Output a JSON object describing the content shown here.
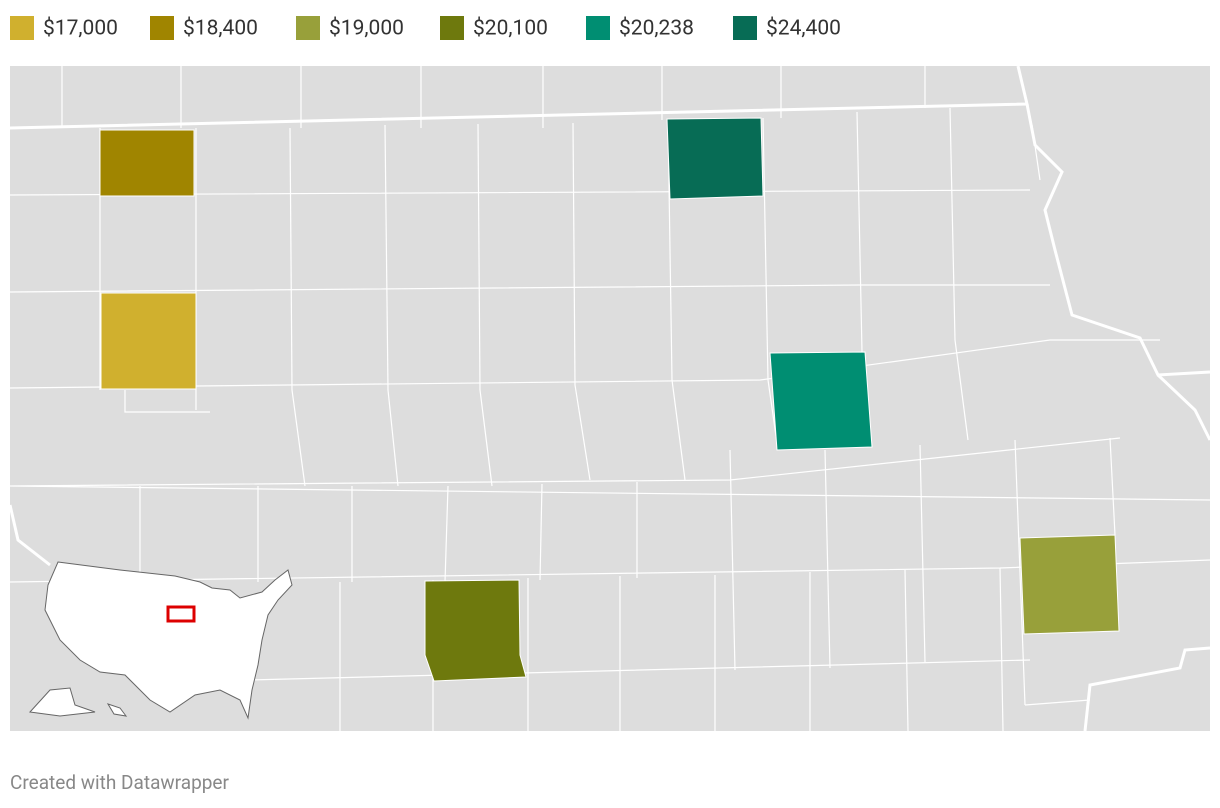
{
  "legend": [
    {
      "label": "$17,000",
      "color": "#d0b02e"
    },
    {
      "label": "$18,400",
      "color": "#a08500"
    },
    {
      "label": "$19,000",
      "color": "#98a03a"
    },
    {
      "label": "$20,100",
      "color": "#6e790d"
    },
    {
      "label": "$20,238",
      "color": "#008e72"
    },
    {
      "label": "$24,400",
      "color": "#076c55"
    }
  ],
  "footer": "Created with Datawrapper"
}
